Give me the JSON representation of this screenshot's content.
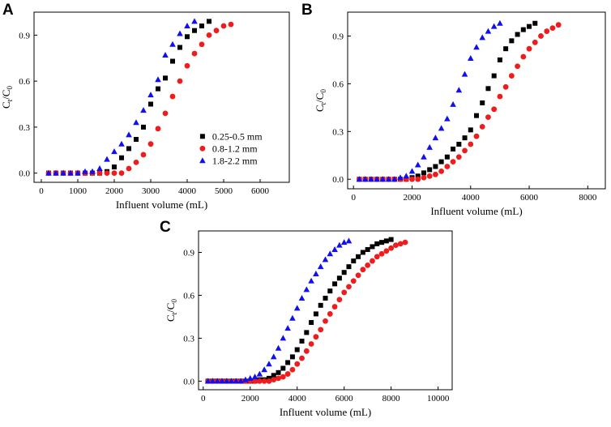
{
  "chart_data": [
    {
      "type": "scatter",
      "panel": "A",
      "xlabel": "Influent volume (mL)",
      "ylabel_main": "C",
      "ylabel_sub1": "t",
      "ylabel_mid": "/C",
      "ylabel_sub2": "0",
      "xlim": [
        -200,
        6800
      ],
      "ylim": [
        -0.06,
        1.05
      ],
      "xticks": [
        0,
        1000,
        2000,
        3000,
        4000,
        5000,
        6000
      ],
      "yticks": [
        0.0,
        0.3,
        0.6,
        0.9
      ],
      "xtick_labels": [
        "0",
        "1000",
        "2000",
        "3000",
        "4000",
        "5000",
        "6000"
      ],
      "ytick_labels": [
        "0.0",
        "0.3",
        "0.6",
        "0.9"
      ],
      "legend": true,
      "legend_position": "bottom-right",
      "series": [
        {
          "name": "0.25-0.5 mm",
          "marker": "square",
          "color": "#000000",
          "x": [
            200,
            400,
            600,
            800,
            1000,
            1200,
            1400,
            1600,
            1800,
            2000,
            2200,
            2400,
            2600,
            2800,
            3000,
            3200,
            3400,
            3600,
            3800,
            4000,
            4200,
            4400,
            4600
          ],
          "y": [
            0.0,
            0.0,
            0.0,
            0.0,
            0.0,
            0.0,
            0.0,
            0.0,
            0.01,
            0.04,
            0.1,
            0.16,
            0.22,
            0.3,
            0.45,
            0.55,
            0.62,
            0.73,
            0.82,
            0.89,
            0.93,
            0.96,
            0.99
          ]
        },
        {
          "name": "0.8-1.2 mm",
          "marker": "circle",
          "color": "#ee1c1c",
          "x": [
            200,
            400,
            600,
            800,
            1000,
            1200,
            1400,
            1600,
            1800,
            2000,
            2200,
            2400,
            2600,
            2800,
            3000,
            3200,
            3400,
            3600,
            3800,
            4000,
            4200,
            4400,
            4600,
            4800,
            5000,
            5200
          ],
          "y": [
            0.0,
            0.0,
            0.0,
            0.0,
            0.0,
            0.0,
            0.0,
            0.0,
            0.0,
            0.0,
            0.0,
            0.03,
            0.07,
            0.12,
            0.19,
            0.29,
            0.39,
            0.5,
            0.6,
            0.7,
            0.78,
            0.84,
            0.9,
            0.93,
            0.96,
            0.97
          ]
        },
        {
          "name": "1.8-2.2 mm",
          "marker": "triangle",
          "color": "#1010ee",
          "x": [
            200,
            400,
            600,
            800,
            1000,
            1200,
            1400,
            1600,
            1800,
            2000,
            2200,
            2400,
            2600,
            2800,
            3000,
            3200,
            3400,
            3600,
            3800,
            4000,
            4200
          ],
          "y": [
            0.0,
            0.0,
            0.0,
            0.0,
            0.0,
            0.01,
            0.01,
            0.03,
            0.09,
            0.14,
            0.19,
            0.25,
            0.33,
            0.41,
            0.51,
            0.61,
            0.77,
            0.84,
            0.91,
            0.96,
            0.99
          ]
        }
      ]
    },
    {
      "type": "scatter",
      "panel": "B",
      "xlabel": "Influent volume (mL)",
      "ylabel_main": "C",
      "ylabel_sub1": "t",
      "ylabel_mid": "/C",
      "ylabel_sub2": "0",
      "xlim": [
        -200,
        8600
      ],
      "ylim": [
        -0.06,
        1.05
      ],
      "xticks": [
        0,
        2000,
        4000,
        6000,
        8000
      ],
      "yticks": [
        0.0,
        0.3,
        0.6,
        0.9
      ],
      "xtick_labels": [
        "0",
        "2000",
        "4000",
        "6000",
        "8000"
      ],
      "ytick_labels": [
        "0.0",
        "0.3",
        "0.6",
        "0.9"
      ],
      "legend": false,
      "series": [
        {
          "name": "0.25-0.5 mm",
          "marker": "square",
          "color": "#000000",
          "x": [
            200,
            400,
            600,
            800,
            1000,
            1200,
            1400,
            1600,
            1800,
            2000,
            2200,
            2400,
            2600,
            2800,
            3000,
            3200,
            3400,
            3600,
            3800,
            4000,
            4200,
            4400,
            4600,
            4800,
            5000,
            5200,
            5400,
            5600,
            5800,
            6000,
            6200
          ],
          "y": [
            0.0,
            0.0,
            0.0,
            0.0,
            0.0,
            0.0,
            0.0,
            0.0,
            0.0,
            0.01,
            0.02,
            0.04,
            0.06,
            0.08,
            0.11,
            0.14,
            0.19,
            0.22,
            0.26,
            0.31,
            0.4,
            0.48,
            0.57,
            0.65,
            0.75,
            0.82,
            0.87,
            0.91,
            0.94,
            0.96,
            0.98
          ]
        },
        {
          "name": "0.8-1.2 mm",
          "marker": "circle",
          "color": "#ee1c1c",
          "x": [
            200,
            400,
            600,
            800,
            1000,
            1200,
            1400,
            1600,
            1800,
            2000,
            2200,
            2400,
            2600,
            2800,
            3000,
            3200,
            3400,
            3600,
            3800,
            4000,
            4200,
            4400,
            4600,
            4800,
            5000,
            5200,
            5400,
            5600,
            5800,
            6000,
            6200,
            6400,
            6600,
            6800,
            7000
          ],
          "y": [
            0.0,
            0.0,
            0.0,
            0.0,
            0.0,
            0.0,
            0.0,
            0.0,
            0.0,
            0.0,
            0.0,
            0.01,
            0.02,
            0.03,
            0.05,
            0.08,
            0.11,
            0.14,
            0.18,
            0.22,
            0.27,
            0.33,
            0.39,
            0.44,
            0.52,
            0.58,
            0.65,
            0.71,
            0.77,
            0.82,
            0.86,
            0.9,
            0.93,
            0.95,
            0.97
          ]
        },
        {
          "name": "1.8-2.2 mm",
          "marker": "triangle",
          "color": "#1010ee",
          "x": [
            200,
            400,
            600,
            800,
            1000,
            1200,
            1400,
            1600,
            1800,
            2000,
            2200,
            2400,
            2600,
            2800,
            3000,
            3200,
            3400,
            3600,
            3800,
            4000,
            4200,
            4400,
            4600,
            4800,
            5000
          ],
          "y": [
            0.0,
            0.0,
            0.0,
            0.0,
            0.0,
            0.0,
            0.0,
            0.01,
            0.02,
            0.05,
            0.09,
            0.14,
            0.2,
            0.26,
            0.32,
            0.38,
            0.47,
            0.56,
            0.66,
            0.76,
            0.83,
            0.89,
            0.93,
            0.96,
            0.98
          ]
        }
      ]
    },
    {
      "type": "scatter",
      "panel": "C",
      "xlabel": "Influent volume (mL)",
      "ylabel_main": "C",
      "ylabel_sub1": "t",
      "ylabel_mid": "/C",
      "ylabel_sub2": "0",
      "xlim": [
        -200,
        10600
      ],
      "ylim": [
        -0.06,
        1.05
      ],
      "xticks": [
        0,
        2000,
        4000,
        6000,
        8000,
        10000
      ],
      "yticks": [
        0.0,
        0.3,
        0.6,
        0.9
      ],
      "xtick_labels": [
        "0",
        "2000",
        "4000",
        "6000",
        "8000",
        "10000"
      ],
      "ytick_labels": [
        "0.0",
        "0.3",
        "0.6",
        "0.9"
      ],
      "legend": false,
      "series": [
        {
          "name": "0.25-0.5 mm",
          "marker": "square",
          "color": "#000000",
          "x": [
            200,
            400,
            600,
            800,
            1000,
            1200,
            1400,
            1600,
            1800,
            2000,
            2200,
            2400,
            2600,
            2800,
            3000,
            3200,
            3400,
            3600,
            3800,
            4000,
            4200,
            4400,
            4600,
            4800,
            5000,
            5200,
            5400,
            5600,
            5800,
            6000,
            6200,
            6400,
            6600,
            6800,
            7000,
            7200,
            7400,
            7600,
            7800,
            8000
          ],
          "y": [
            0.0,
            0.0,
            0.0,
            0.0,
            0.0,
            0.0,
            0.0,
            0.0,
            0.0,
            0.0,
            0.0,
            0.01,
            0.01,
            0.02,
            0.04,
            0.06,
            0.09,
            0.13,
            0.17,
            0.22,
            0.28,
            0.34,
            0.41,
            0.47,
            0.53,
            0.58,
            0.63,
            0.68,
            0.72,
            0.76,
            0.8,
            0.84,
            0.87,
            0.9,
            0.92,
            0.94,
            0.96,
            0.97,
            0.98,
            0.99
          ]
        },
        {
          "name": "0.8-1.2 mm",
          "marker": "circle",
          "color": "#ee1c1c",
          "x": [
            200,
            400,
            600,
            800,
            1000,
            1200,
            1400,
            1600,
            1800,
            2000,
            2200,
            2400,
            2600,
            2800,
            3000,
            3200,
            3400,
            3600,
            3800,
            4000,
            4200,
            4400,
            4600,
            4800,
            5000,
            5200,
            5400,
            5600,
            5800,
            6000,
            6200,
            6400,
            6600,
            6800,
            7000,
            7200,
            7400,
            7600,
            7800,
            8000,
            8200,
            8400,
            8600
          ],
          "y": [
            0.0,
            0.0,
            0.0,
            0.0,
            0.0,
            0.0,
            0.0,
            0.0,
            0.0,
            0.0,
            0.0,
            0.0,
            0.0,
            0.0,
            0.01,
            0.02,
            0.03,
            0.05,
            0.08,
            0.12,
            0.16,
            0.21,
            0.26,
            0.31,
            0.36,
            0.42,
            0.47,
            0.52,
            0.57,
            0.62,
            0.66,
            0.7,
            0.74,
            0.78,
            0.81,
            0.84,
            0.87,
            0.89,
            0.91,
            0.93,
            0.95,
            0.96,
            0.97
          ]
        },
        {
          "name": "1.8-2.2 mm",
          "marker": "triangle",
          "color": "#1010ee",
          "x": [
            200,
            400,
            600,
            800,
            1000,
            1200,
            1400,
            1600,
            1800,
            2000,
            2200,
            2400,
            2600,
            2800,
            3000,
            3200,
            3400,
            3600,
            3800,
            4000,
            4200,
            4400,
            4600,
            4800,
            5000,
            5200,
            5400,
            5600,
            5800,
            6000,
            6200
          ],
          "y": [
            0.0,
            0.0,
            0.0,
            0.0,
            0.0,
            0.0,
            0.0,
            0.0,
            0.01,
            0.02,
            0.03,
            0.05,
            0.08,
            0.12,
            0.17,
            0.23,
            0.3,
            0.37,
            0.44,
            0.51,
            0.58,
            0.64,
            0.7,
            0.75,
            0.8,
            0.85,
            0.89,
            0.92,
            0.95,
            0.97,
            0.98
          ]
        }
      ]
    }
  ]
}
